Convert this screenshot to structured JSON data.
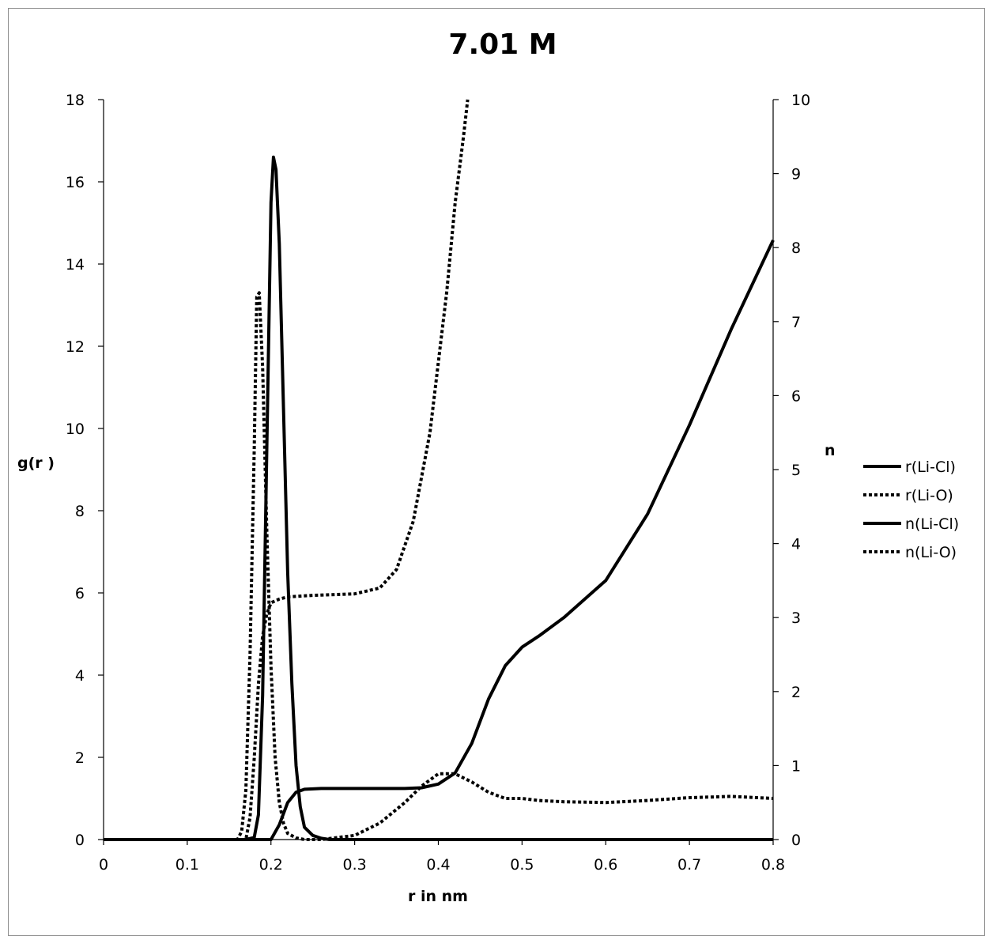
{
  "chart_data": {
    "type": "line",
    "title": "7.01 M",
    "xlabel": "r in nm",
    "ylabel": "g(r )",
    "y2label": "n",
    "xlim": [
      0,
      0.8
    ],
    "ylim": [
      0,
      18
    ],
    "y2lim": [
      0,
      10
    ],
    "xticks": [
      "0",
      "0.1",
      "0.2",
      "0.3",
      "0.4",
      "0.5",
      "0.6",
      "0.7",
      "0.8"
    ],
    "yticks": [
      "0",
      "2",
      "4",
      "6",
      "8",
      "10",
      "12",
      "14",
      "16",
      "18"
    ],
    "y2ticks": [
      "0",
      "1",
      "2",
      "3",
      "4",
      "5",
      "6",
      "7",
      "8",
      "9",
      "10"
    ],
    "grid": false,
    "legend_position": "right",
    "series": [
      {
        "name": "r(Li-Cl)",
        "axis": "left",
        "style": "solid",
        "color": "#000000",
        "x": [
          0,
          0.17,
          0.18,
          0.185,
          0.19,
          0.195,
          0.2,
          0.203,
          0.206,
          0.21,
          0.215,
          0.22,
          0.225,
          0.23,
          0.235,
          0.24,
          0.25,
          0.26,
          0.27,
          0.8
        ],
        "y": [
          0,
          0,
          0.05,
          0.6,
          3.5,
          9.5,
          15.5,
          16.6,
          16.3,
          14.5,
          10.5,
          6.5,
          3.8,
          1.8,
          0.8,
          0.3,
          0.1,
          0.03,
          0,
          0
        ]
      },
      {
        "name": "r(Li-O)",
        "axis": "left",
        "style": "dotted",
        "color": "#000000",
        "x": [
          0,
          0.16,
          0.165,
          0.17,
          0.175,
          0.18,
          0.183,
          0.186,
          0.19,
          0.195,
          0.2,
          0.205,
          0.21,
          0.215,
          0.22,
          0.23,
          0.24,
          0.26,
          0.3,
          0.33,
          0.36,
          0.38,
          0.4,
          0.42,
          0.44,
          0.46,
          0.48,
          0.5,
          0.52,
          0.55,
          0.6,
          0.65,
          0.7,
          0.75,
          0.8
        ],
        "y": [
          0,
          0,
          0.2,
          1.2,
          4.5,
          9.5,
          13.2,
          13.3,
          11.5,
          7.5,
          4.2,
          2.0,
          0.9,
          0.4,
          0.15,
          0.04,
          0,
          0,
          0.1,
          0.4,
          0.9,
          1.3,
          1.6,
          1.6,
          1.4,
          1.15,
          1.0,
          1.0,
          0.95,
          0.92,
          0.9,
          0.95,
          1.02,
          1.05,
          1.0
        ]
      },
      {
        "name": "n(Li-Cl)",
        "axis": "right",
        "style": "solid",
        "color": "#000000",
        "x": [
          0,
          0.2,
          0.21,
          0.22,
          0.23,
          0.24,
          0.26,
          0.3,
          0.36,
          0.38,
          0.4,
          0.42,
          0.44,
          0.46,
          0.48,
          0.5,
          0.52,
          0.55,
          0.6,
          0.65,
          0.7,
          0.75,
          0.8
        ],
        "x2": [],
        "y": [
          0,
          0,
          0.2,
          0.5,
          0.64,
          0.68,
          0.69,
          0.69,
          0.69,
          0.7,
          0.75,
          0.9,
          1.3,
          1.9,
          2.35,
          2.6,
          2.75,
          3.0,
          3.5,
          4.4,
          5.6,
          6.9,
          8.1
        ]
      },
      {
        "name": "n(Li-O)",
        "axis": "right",
        "style": "dotted",
        "color": "#000000",
        "x": [
          0,
          0.17,
          0.175,
          0.18,
          0.185,
          0.19,
          0.195,
          0.2,
          0.21,
          0.22,
          0.25,
          0.3,
          0.33,
          0.35,
          0.37,
          0.39,
          0.41,
          0.42,
          0.43,
          0.435
        ],
        "y": [
          0,
          0,
          0.3,
          1.1,
          2.1,
          2.75,
          3.05,
          3.2,
          3.25,
          3.28,
          3.3,
          3.32,
          3.4,
          3.65,
          4.3,
          5.5,
          7.4,
          8.6,
          9.5,
          10.0
        ]
      }
    ]
  }
}
